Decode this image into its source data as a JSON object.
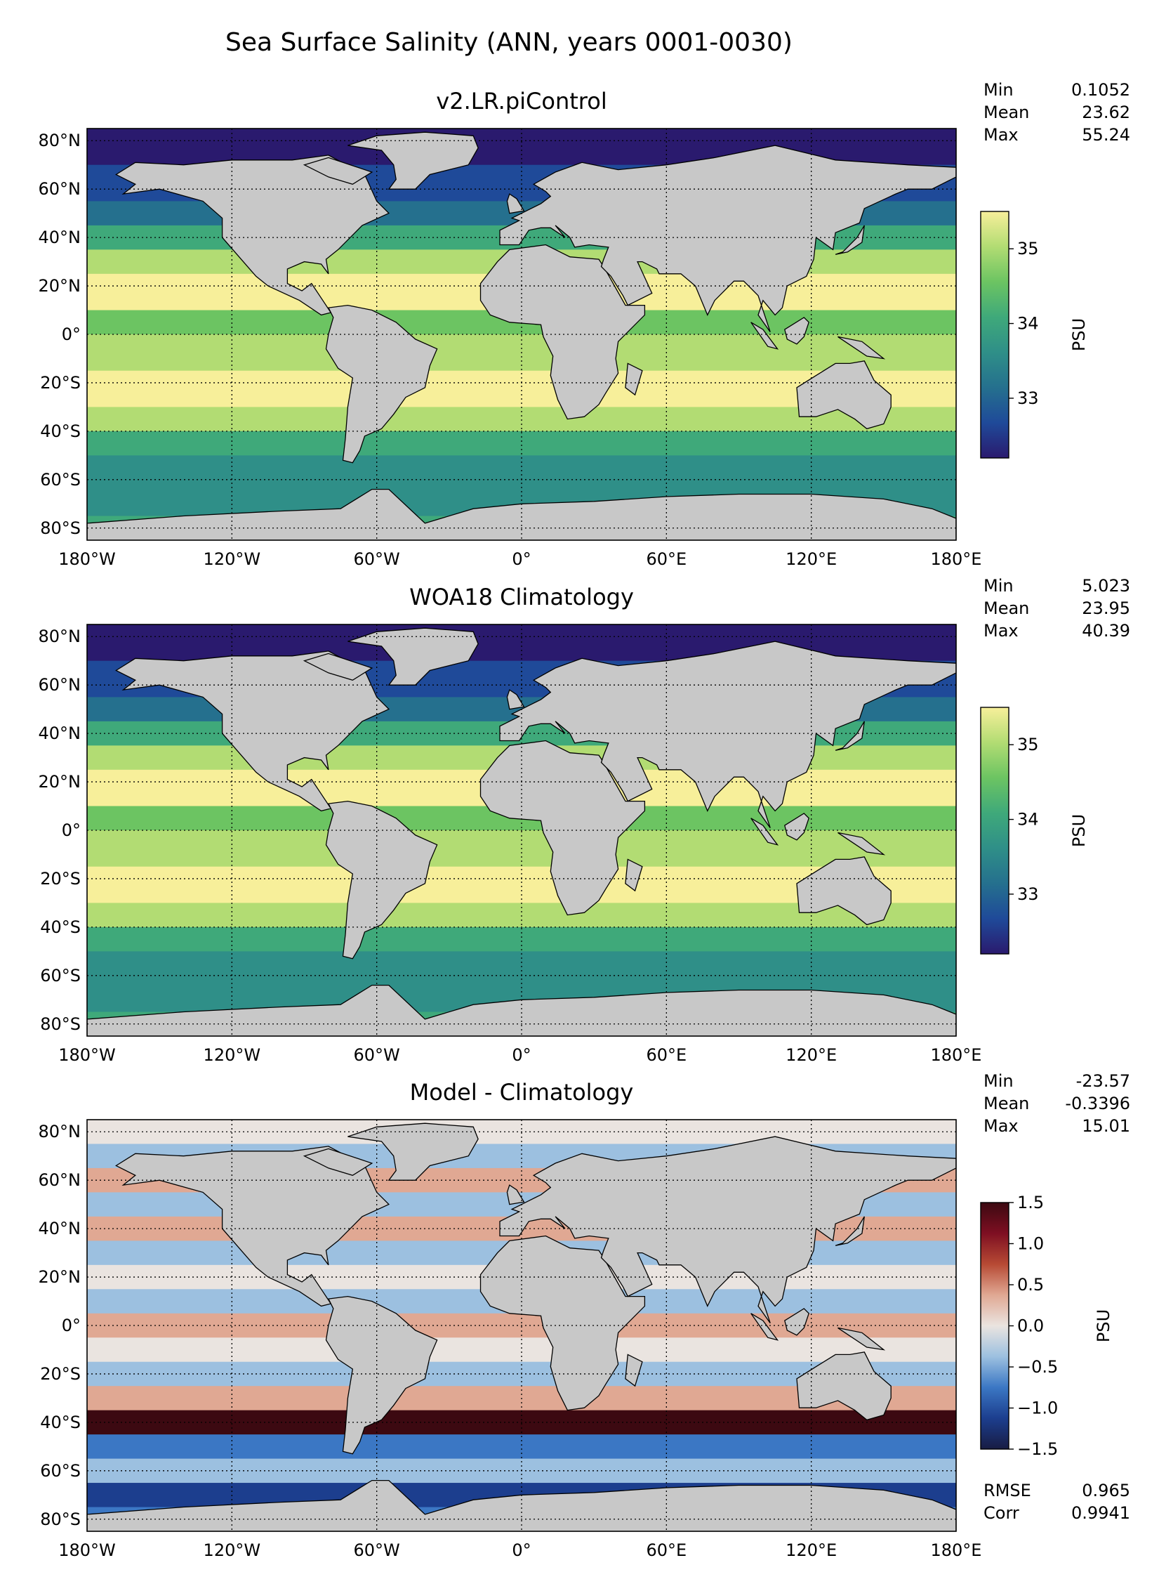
{
  "figure": {
    "title": "Sea Surface Salinity (ANN, years 0001-0030)"
  },
  "lon_ticks": [
    "180°W",
    "120°W",
    "60°W",
    "0°",
    "60°E",
    "120°E",
    "180°E"
  ],
  "lat_ticks": [
    "80°N",
    "60°N",
    "40°N",
    "20°N",
    "0°",
    "20°S",
    "40°S",
    "60°S",
    "80°S"
  ],
  "colors": {
    "land": "#c8c8c8",
    "haline": [
      "#2a1a6e",
      "#1f4a99",
      "#25708e",
      "#2f8f88",
      "#3fa97a",
      "#6cc462",
      "#b2dc73",
      "#f7ef9a"
    ],
    "balance": [
      "#181c43",
      "#1c3e8e",
      "#3b77c4",
      "#9cc0e0",
      "#eae4e0",
      "#e0a893",
      "#b74a34",
      "#7e0f22",
      "#3c0911"
    ]
  },
  "chart_data": [
    {
      "type": "heatmap",
      "title": "v2.LR.piControl",
      "colorbar": {
        "label": "PSU",
        "range": [
          32.2,
          35.5
        ],
        "ticks": [
          "33",
          "34",
          "35"
        ],
        "tick_values": [
          33,
          34,
          35
        ],
        "extend": "both"
      },
      "stats": [
        {
          "label": "Min",
          "value": "0.1052"
        },
        {
          "label": "Mean",
          "value": "23.62"
        },
        {
          "label": "Max",
          "value": "55.24"
        }
      ],
      "grid": true
    },
    {
      "type": "heatmap",
      "title": "WOA18 Climatology",
      "colorbar": {
        "label": "PSU",
        "range": [
          32.2,
          35.5
        ],
        "ticks": [
          "33",
          "34",
          "35"
        ],
        "tick_values": [
          33,
          34,
          35
        ],
        "extend": "both"
      },
      "stats": [
        {
          "label": "Min",
          "value": "5.023"
        },
        {
          "label": "Mean",
          "value": "23.95"
        },
        {
          "label": "Max",
          "value": "40.39"
        }
      ],
      "grid": true
    },
    {
      "type": "heatmap",
      "title": "Model - Climatology",
      "colorbar": {
        "label": "PSU",
        "range": [
          -1.5,
          1.5
        ],
        "ticks": [
          "1.5",
          "1.0",
          "0.5",
          "0.0",
          "−0.5",
          "−1.0",
          "−1.5"
        ],
        "tick_values": [
          1.5,
          1.0,
          0.5,
          0.0,
          -0.5,
          -1.0,
          -1.5
        ],
        "extend": "both"
      },
      "stats": [
        {
          "label": "Min",
          "value": "-23.57"
        },
        {
          "label": "Mean",
          "value": "-0.3396"
        },
        {
          "label": "Max",
          "value": "15.01"
        }
      ],
      "stats_bottom": [
        {
          "label": "RMSE",
          "value": "0.965"
        },
        {
          "label": "Corr",
          "value": "0.9941"
        }
      ],
      "grid": true
    }
  ]
}
